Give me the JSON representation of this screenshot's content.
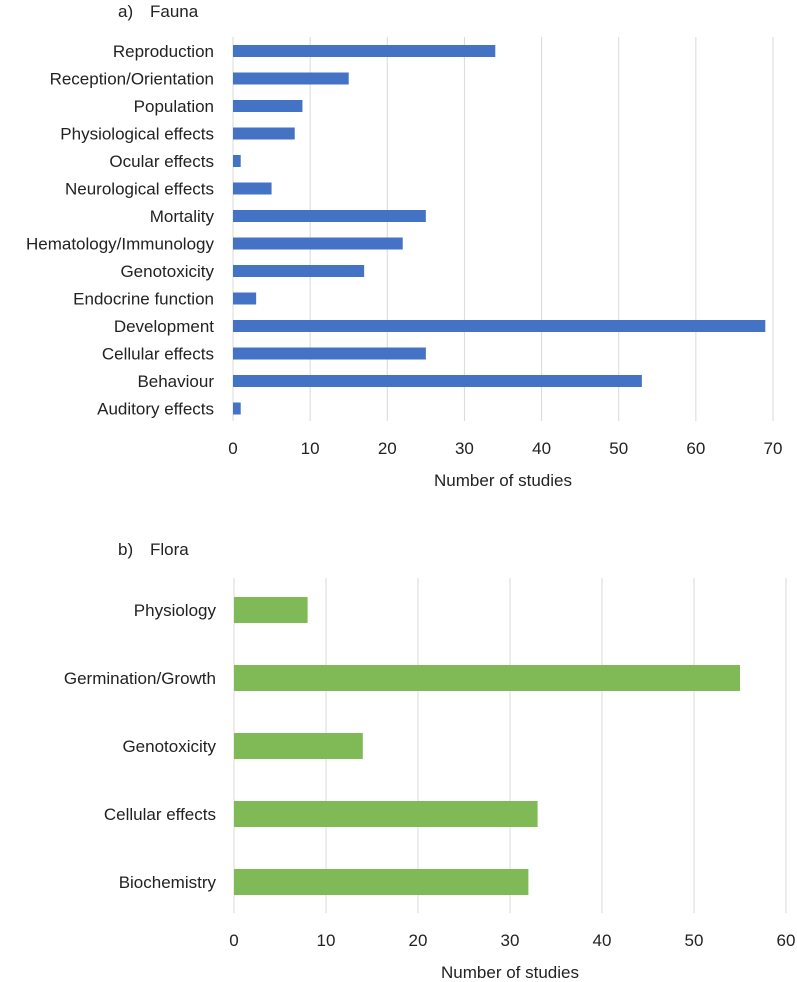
{
  "chart_data": [
    {
      "type": "bar",
      "orientation": "horizontal",
      "panel_label": "a)",
      "title": "Fauna",
      "xlabel": "Number of studies",
      "ylabel": "",
      "xlim": [
        0,
        70
      ],
      "xticks": [
        0,
        10,
        20,
        30,
        40,
        50,
        60,
        70
      ],
      "grid": "vertical",
      "color": "#4472C4",
      "categories": [
        "Reproduction",
        "Reception/Orientation",
        "Population",
        "Physiological effects",
        "Ocular effects",
        "Neurological effects",
        "Mortality",
        "Hematology/Immunology",
        "Genotoxicity",
        "Endocrine function",
        "Development",
        "Cellular effects",
        "Behaviour",
        "Auditory effects"
      ],
      "values": [
        34,
        15,
        9,
        8,
        1,
        5,
        25,
        22,
        17,
        3,
        69,
        25,
        53,
        1
      ]
    },
    {
      "type": "bar",
      "orientation": "horizontal",
      "panel_label": "b)",
      "title": "Flora",
      "xlabel": "Number of studies",
      "ylabel": "",
      "xlim": [
        0,
        60
      ],
      "xticks": [
        0,
        10,
        20,
        30,
        40,
        50,
        60
      ],
      "grid": "vertical",
      "color": "#7FBA56",
      "categories": [
        "Physiology",
        "Germination/Growth",
        "Genotoxicity",
        "Cellular effects",
        "Biochemistry"
      ],
      "values": [
        8,
        55,
        14,
        33,
        32
      ]
    }
  ]
}
